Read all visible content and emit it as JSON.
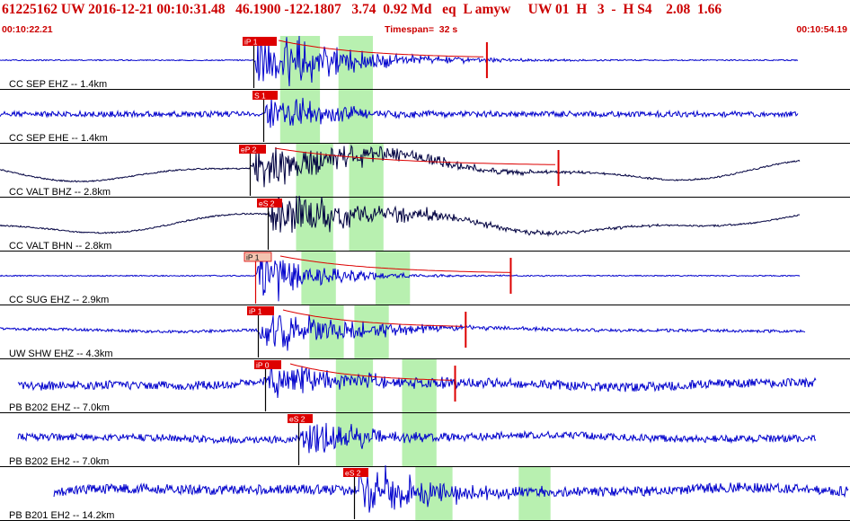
{
  "header": {
    "title": "61225162 UW 2016-12-21 00:10:31.48   46.1900 -122.1807   3.74  0.92 Md   eq  L amyw     UW 01  H   3  -  H S4    2.08  1.66",
    "start_time": "00:10:22.21",
    "timespan": "Timespan=  32 s",
    "end_time": "00:10:54.19"
  },
  "colors": {
    "accent": "#cc0000",
    "pick_fill": "#dd0000",
    "pick_fill_weak": "#f4c4b0",
    "trace_blue": "#0000cc",
    "trace_dark": "#000040",
    "phase_window": "#b8f0b0"
  },
  "channels": [
    {
      "label": "CC SEP EHZ -- 1.4km",
      "color": "trace_blue",
      "pick": {
        "label": "iP 1",
        "style": "strong",
        "line_color": "#000000"
      },
      "windows": [
        [
          0.4,
          1.9
        ],
        [
          2.6,
          3.9
        ]
      ],
      "flag_time": 8.2
    },
    {
      "label": "CC SEP EHE -- 1.4km",
      "color": "trace_blue",
      "pick": {
        "label": "S 1",
        "style": "strong",
        "line_color": "#000000"
      },
      "windows": [
        [
          0.4,
          1.9
        ],
        [
          2.6,
          3.9
        ]
      ]
    },
    {
      "label": "CC VALT BHZ -- 2.8km",
      "color": "trace_dark",
      "pick": {
        "label": "eP 2",
        "style": "strong",
        "line_color": "#000000"
      },
      "windows": [
        [
          1.0,
          2.4
        ],
        [
          3.0,
          4.3
        ]
      ],
      "flag_time": 10.9
    },
    {
      "label": "CC VALT BHN -- 2.8km",
      "color": "trace_dark",
      "pick": {
        "label": "eS 2",
        "style": "strong",
        "line_color": "#000000"
      },
      "windows": [
        [
          1.0,
          2.4
        ],
        [
          3.0,
          4.3
        ]
      ]
    },
    {
      "label": "CC SUG EHZ -- 2.9km",
      "color": "trace_blue",
      "pick": {
        "label": "iP 1",
        "style": "weak",
        "line_color": "#dd0000"
      },
      "windows": [
        [
          1.2,
          2.5
        ],
        [
          4.0,
          5.3
        ]
      ],
      "flag_time": 9.1
    },
    {
      "label": "UW SHW EHZ -- 4.3km",
      "color": "trace_blue",
      "pick": {
        "label": "iP 1",
        "style": "strong",
        "line_color": "#000000"
      },
      "windows": [
        [
          1.5,
          2.8
        ],
        [
          3.2,
          4.5
        ]
      ],
      "flag_time": 7.4
    },
    {
      "label": "PB B202 EHZ -- 7.0km",
      "color": "trace_blue",
      "pick": {
        "label": "iP 0",
        "style": "strong",
        "line_color": "#000000"
      },
      "windows": [
        [
          2.5,
          3.9
        ],
        [
          5.0,
          6.3
        ]
      ],
      "flag_time": 7.0
    },
    {
      "label": "PB B202 EH2 -- 7.0km",
      "color": "trace_blue",
      "pick": {
        "label": "eS 2",
        "style": "strong",
        "line_color": "#000000"
      },
      "windows": [
        [
          2.5,
          3.9
        ],
        [
          5.0,
          6.3
        ]
      ]
    },
    {
      "label": "PB B201 EH2 -- 14.2km",
      "color": "trace_blue",
      "pick": {
        "label": "eS 2",
        "style": "strong",
        "line_color": "#000000"
      },
      "windows": [
        [
          5.5,
          6.9
        ],
        [
          9.4,
          10.6
        ]
      ]
    }
  ]
}
